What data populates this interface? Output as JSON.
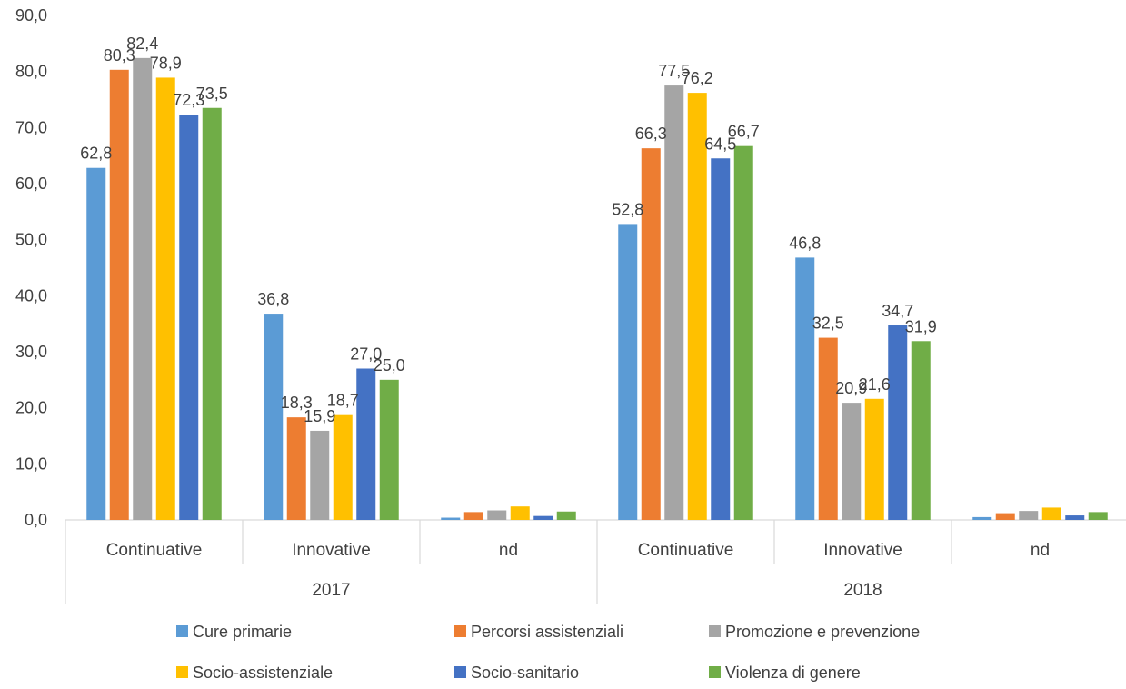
{
  "chart_data": {
    "type": "bar",
    "groups": [
      {
        "label": "2017",
        "categories": [
          "Continuative",
          "Innovative",
          "nd"
        ]
      },
      {
        "label": "2018",
        "categories": [
          "Continuative",
          "Innovative",
          "nd"
        ]
      }
    ],
    "series": [
      {
        "name": "Cure primarie",
        "color": "#5B9BD5",
        "values": [
          62.8,
          36.8,
          0.4,
          52.8,
          46.8,
          0.5
        ],
        "labels": [
          "62,8",
          "36,8",
          "",
          "52,8",
          "46,8",
          ""
        ]
      },
      {
        "name": "Percorsi assistenziali",
        "color": "#ED7D31",
        "values": [
          80.3,
          18.3,
          1.4,
          66.3,
          32.5,
          1.2
        ],
        "labels": [
          "80,3",
          "18,3",
          "",
          "66,3",
          "32,5",
          ""
        ]
      },
      {
        "name": "Promozione e prevenzione",
        "color": "#A5A5A5",
        "values": [
          82.4,
          15.9,
          1.7,
          77.5,
          20.9,
          1.6
        ],
        "labels": [
          "82,4",
          "15,9",
          "",
          "77,5",
          "20,9",
          ""
        ]
      },
      {
        "name": "Socio-assistenziale",
        "color": "#FFC000",
        "values": [
          78.9,
          18.7,
          2.4,
          76.2,
          21.6,
          2.2
        ],
        "labels": [
          "78,9",
          "18,7",
          "",
          "76,2",
          "21,6",
          ""
        ]
      },
      {
        "name": "Socio-sanitario",
        "color": "#4472C4",
        "values": [
          72.3,
          27.0,
          0.7,
          64.5,
          34.7,
          0.8
        ],
        "labels": [
          "72,3",
          "27,0",
          "",
          "64,5",
          "34,7",
          ""
        ]
      },
      {
        "name": "Violenza di genere",
        "color": "#70AD47",
        "values": [
          73.5,
          25.0,
          1.5,
          66.7,
          31.9,
          1.4
        ],
        "labels": [
          "73,5",
          "25,0",
          "",
          "66,7",
          "31,9",
          ""
        ]
      }
    ],
    "yticks": [
      "0,0",
      "10,0",
      "20,0",
      "30,0",
      "40,0",
      "50,0",
      "60,0",
      "70,0",
      "80,0",
      "90,0"
    ],
    "ylim": [
      0,
      90
    ],
    "legend_position": "bottom",
    "grid": false
  }
}
